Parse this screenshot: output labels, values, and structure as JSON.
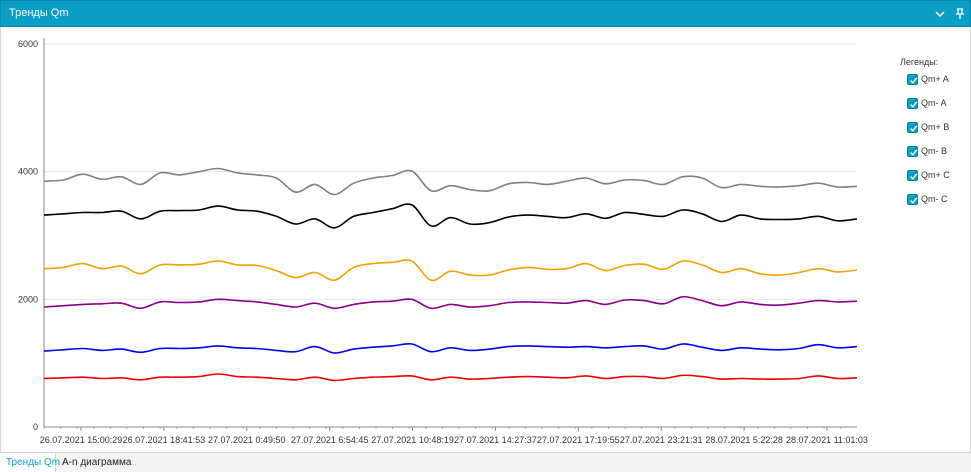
{
  "window": {
    "title": "Тренды Qm",
    "menu_icon": "chevron-down-icon",
    "pin_icon": "pin-icon"
  },
  "legend": {
    "title": "Легенды:",
    "items": [
      {
        "label": "Qm+ A",
        "checked": true,
        "color": "#808080"
      },
      {
        "label": "Qm- A",
        "checked": true,
        "color": "#000000"
      },
      {
        "label": "Qm+ B",
        "checked": true,
        "color": "#f2a202"
      },
      {
        "label": "Qm- B",
        "checked": true,
        "color": "#8b008b"
      },
      {
        "label": "Qm+ C",
        "checked": true,
        "color": "#0000ee"
      },
      {
        "label": "Qm- C",
        "checked": true,
        "color": "#ee0000"
      }
    ]
  },
  "tabs": [
    {
      "label": "Тренды Qm",
      "active": true
    },
    {
      "label": "А-n диаграмма",
      "active": false
    }
  ],
  "chart_data": {
    "type": "line",
    "title": "",
    "xlabel": "",
    "ylabel": "",
    "ylim": [
      0,
      6000
    ],
    "yticks": [
      0,
      2000,
      4000,
      6000
    ],
    "grid": "horizontal",
    "legend_position": "right",
    "x_tick_labels": [
      "26.07.2021 15:00:29",
      "26.07.2021 18:41:53",
      "27.07.2021 0:49:50",
      "27.07.2021 6:54:45",
      "27.07.2021 10:48:19",
      "27.07.2021 14:27:37",
      "27.07.2021 17:19:55",
      "27.07.2021 23:21:31",
      "28.07.2021 5:22:28",
      "28.07.2021 11:01:03"
    ],
    "series": [
      {
        "name": "Qm+ A",
        "color": "#808080",
        "values": [
          3850,
          3870,
          3960,
          3880,
          3920,
          3800,
          3980,
          3950,
          4000,
          4050,
          3980,
          3950,
          3900,
          3680,
          3800,
          3640,
          3820,
          3900,
          3940,
          4010,
          3700,
          3780,
          3720,
          3700,
          3810,
          3830,
          3800,
          3850,
          3900,
          3810,
          3870,
          3860,
          3800,
          3920,
          3900,
          3750,
          3800,
          3770,
          3760,
          3780,
          3820,
          3760,
          3770
        ]
      },
      {
        "name": "Qm- A",
        "color": "#000000",
        "values": [
          3320,
          3340,
          3360,
          3360,
          3380,
          3260,
          3380,
          3390,
          3400,
          3460,
          3400,
          3380,
          3300,
          3180,
          3260,
          3120,
          3300,
          3360,
          3420,
          3480,
          3150,
          3280,
          3180,
          3200,
          3290,
          3320,
          3300,
          3280,
          3340,
          3270,
          3360,
          3330,
          3300,
          3400,
          3340,
          3220,
          3320,
          3260,
          3250,
          3260,
          3300,
          3230,
          3260
        ]
      },
      {
        "name": "Qm+ B",
        "color": "#f2a202",
        "values": [
          2480,
          2500,
          2560,
          2480,
          2520,
          2400,
          2540,
          2540,
          2550,
          2600,
          2540,
          2530,
          2450,
          2340,
          2420,
          2300,
          2500,
          2560,
          2580,
          2600,
          2300,
          2440,
          2380,
          2380,
          2460,
          2500,
          2470,
          2480,
          2560,
          2450,
          2530,
          2550,
          2470,
          2600,
          2540,
          2420,
          2480,
          2400,
          2380,
          2420,
          2480,
          2430,
          2460
        ]
      },
      {
        "name": "Qm- B",
        "color": "#8b008b",
        "values": [
          1880,
          1900,
          1920,
          1930,
          1940,
          1860,
          1960,
          1950,
          1960,
          2000,
          1980,
          1960,
          1920,
          1880,
          1940,
          1860,
          1920,
          1960,
          1970,
          2000,
          1860,
          1920,
          1880,
          1900,
          1950,
          1960,
          1950,
          1940,
          1980,
          1920,
          1990,
          1980,
          1930,
          2040,
          1980,
          1900,
          1960,
          1920,
          1910,
          1940,
          1980,
          1960,
          1970
        ]
      },
      {
        "name": "Qm+ C",
        "color": "#0000ee",
        "values": [
          1190,
          1210,
          1230,
          1200,
          1220,
          1170,
          1230,
          1230,
          1240,
          1270,
          1240,
          1230,
          1200,
          1180,
          1260,
          1160,
          1220,
          1250,
          1270,
          1300,
          1180,
          1240,
          1200,
          1220,
          1260,
          1270,
          1260,
          1250,
          1260,
          1240,
          1260,
          1270,
          1220,
          1300,
          1250,
          1200,
          1240,
          1220,
          1210,
          1230,
          1290,
          1240,
          1260
        ]
      },
      {
        "name": "Qm- C",
        "color": "#ee0000",
        "values": [
          760,
          770,
          780,
          760,
          770,
          740,
          780,
          780,
          790,
          830,
          790,
          780,
          760,
          740,
          780,
          730,
          760,
          780,
          790,
          800,
          740,
          780,
          750,
          760,
          780,
          790,
          780,
          770,
          800,
          760,
          790,
          790,
          760,
          810,
          790,
          750,
          760,
          750,
          750,
          760,
          800,
          760,
          770
        ]
      }
    ]
  }
}
